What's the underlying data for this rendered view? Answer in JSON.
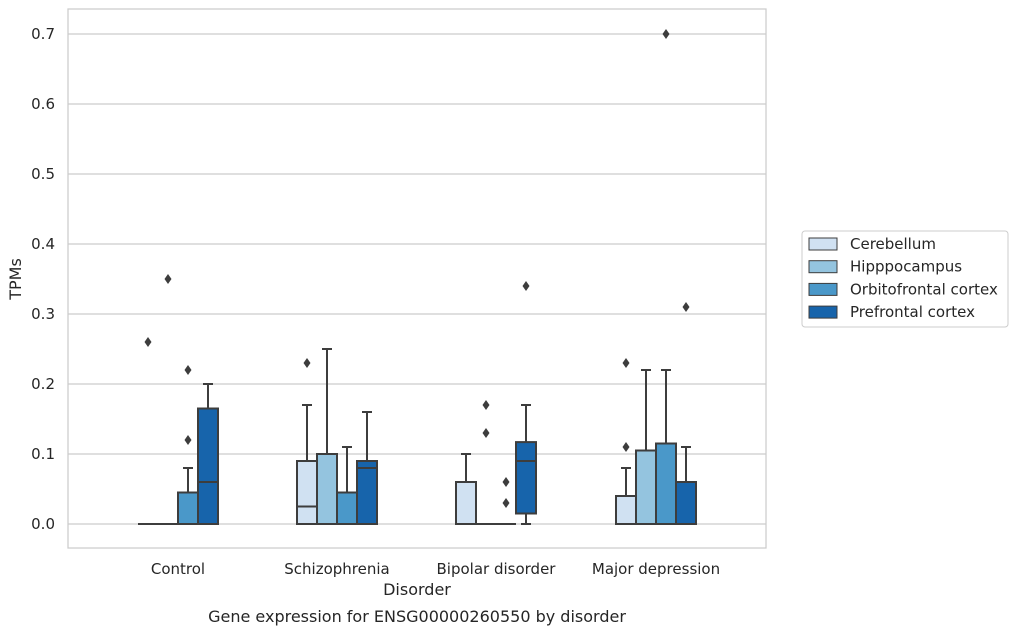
{
  "chart_data": {
    "type": "boxplot",
    "title": "Gene expression for ENSG00000260550 by disorder",
    "xlabel": "Disorder",
    "ylabel": "TPMs",
    "ylim": [
      -0.035,
      0.735
    ],
    "yticks": [
      0.0,
      0.1,
      0.2,
      0.3,
      0.4,
      0.5,
      0.6,
      0.7
    ],
    "ytick_labels": [
      "0.0",
      "0.1",
      "0.2",
      "0.3",
      "0.4",
      "0.5",
      "0.6",
      "0.7"
    ],
    "grid": true,
    "legend_position": "right",
    "categories": [
      "Control",
      "Schizophrenia",
      "Bipolar disorder",
      "Major depression"
    ],
    "series": [
      {
        "name": "Cerebellum",
        "color": "#d0e1f2",
        "boxes": [
          {
            "category": "Control",
            "whisker_low": 0.0,
            "q1": 0.0,
            "median": 0.0,
            "q3": 0.0,
            "whisker_high": 0.0,
            "outliers": [
              0.26
            ]
          },
          {
            "category": "Schizophrenia",
            "whisker_low": 0.0,
            "q1": 0.0,
            "median": 0.025,
            "q3": 0.09,
            "whisker_high": 0.17,
            "outliers": [
              0.23
            ]
          },
          {
            "category": "Bipolar disorder",
            "whisker_low": 0.0,
            "q1": 0.0,
            "median": 0.0,
            "q3": 0.06,
            "whisker_high": 0.1,
            "outliers": []
          },
          {
            "category": "Major depression",
            "whisker_low": 0.0,
            "q1": 0.0,
            "median": 0.0,
            "q3": 0.04,
            "whisker_high": 0.08,
            "outliers": [
              0.11,
              0.23
            ]
          }
        ]
      },
      {
        "name": "Hipppocampus",
        "color": "#94c4df",
        "boxes": [
          {
            "category": "Control",
            "whisker_low": 0.0,
            "q1": 0.0,
            "median": 0.0,
            "q3": 0.0,
            "whisker_high": 0.0,
            "outliers": [
              0.35
            ]
          },
          {
            "category": "Schizophrenia",
            "whisker_low": 0.0,
            "q1": 0.0,
            "median": 0.0,
            "q3": 0.1,
            "whisker_high": 0.25,
            "outliers": []
          },
          {
            "category": "Bipolar disorder",
            "whisker_low": 0.0,
            "q1": 0.0,
            "median": 0.0,
            "q3": 0.0,
            "whisker_high": 0.0,
            "outliers": [
              0.13,
              0.17
            ]
          },
          {
            "category": "Major depression",
            "whisker_low": 0.0,
            "q1": 0.0,
            "median": 0.0,
            "q3": 0.105,
            "whisker_high": 0.22,
            "outliers": []
          }
        ]
      },
      {
        "name": "Orbitofrontal cortex",
        "color": "#4a98c9",
        "boxes": [
          {
            "category": "Control",
            "whisker_low": 0.0,
            "q1": 0.0,
            "median": 0.0,
            "q3": 0.045,
            "whisker_high": 0.08,
            "outliers": [
              0.12,
              0.22
            ]
          },
          {
            "category": "Schizophrenia",
            "whisker_low": 0.0,
            "q1": 0.0,
            "median": 0.0,
            "q3": 0.045,
            "whisker_high": 0.11,
            "outliers": []
          },
          {
            "category": "Bipolar disorder",
            "whisker_low": 0.0,
            "q1": 0.0,
            "median": 0.0,
            "q3": 0.0,
            "whisker_high": 0.0,
            "outliers": [
              0.03,
              0.06
            ]
          },
          {
            "category": "Major depression",
            "whisker_low": 0.0,
            "q1": 0.0,
            "median": 0.0,
            "q3": 0.115,
            "whisker_high": 0.22,
            "outliers": [
              0.7
            ]
          }
        ]
      },
      {
        "name": "Prefrontal cortex",
        "color": "#1764ab",
        "boxes": [
          {
            "category": "Control",
            "whisker_low": 0.0,
            "q1": 0.0,
            "median": 0.06,
            "q3": 0.165,
            "whisker_high": 0.2,
            "outliers": []
          },
          {
            "category": "Schizophrenia",
            "whisker_low": 0.0,
            "q1": 0.0,
            "median": 0.08,
            "q3": 0.09,
            "whisker_high": 0.16,
            "outliers": []
          },
          {
            "category": "Bipolar disorder",
            "whisker_low": 0.0,
            "q1": 0.015,
            "median": 0.09,
            "q3": 0.117,
            "whisker_high": 0.17,
            "outliers": [
              0.34
            ]
          },
          {
            "category": "Major depression",
            "whisker_low": 0.0,
            "q1": 0.0,
            "median": 0.0,
            "q3": 0.06,
            "whisker_high": 0.11,
            "outliers": [
              0.31
            ]
          }
        ]
      }
    ]
  }
}
